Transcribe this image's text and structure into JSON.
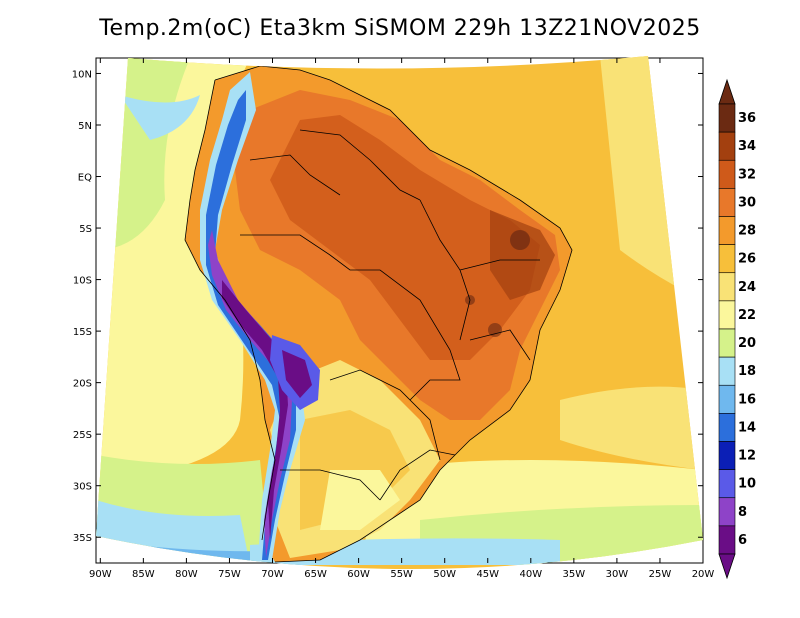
{
  "title": "Temp.2m(oC) Eta3km SiSMOM 229h 13Z21NOV2025",
  "map": {
    "lat_labels": [
      "10N",
      "5N",
      "EQ",
      "5S",
      "10S",
      "15S",
      "20S",
      "25S",
      "30S",
      "35S"
    ],
    "lat_values": [
      10,
      5,
      0,
      -5,
      -10,
      -15,
      -20,
      -25,
      -30,
      -35
    ],
    "lon_labels": [
      "90W",
      "85W",
      "80W",
      "75W",
      "70W",
      "65W",
      "60W",
      "55W",
      "50W",
      "45W",
      "40W",
      "35W",
      "30W",
      "25W",
      "20W"
    ],
    "lon_values": [
      -90,
      -85,
      -80,
      -75,
      -70,
      -65,
      -60,
      -55,
      -50,
      -45,
      -40,
      -35,
      -30,
      -25,
      -20
    ],
    "lat_range": [
      -37.5,
      11.5
    ],
    "lon_range": [
      -90.5,
      -20
    ]
  },
  "colorbar": {
    "labels": [
      "36",
      "34",
      "32",
      "30",
      "28",
      "26",
      "24",
      "22",
      "20",
      "18",
      "16",
      "14",
      "12",
      "10",
      "8",
      "6"
    ],
    "colors": [
      "#6b2a12",
      "#a3400f",
      "#cf5a1a",
      "#e8782a",
      "#f39a2c",
      "#f7bf3a",
      "#f9e276",
      "#fbf79c",
      "#d5f28a",
      "#a8e0f5",
      "#6fb8ee",
      "#2c6fdc",
      "#0b1fb6",
      "#5a5ae8",
      "#8e43c8",
      "#6a0d86"
    ]
  }
}
